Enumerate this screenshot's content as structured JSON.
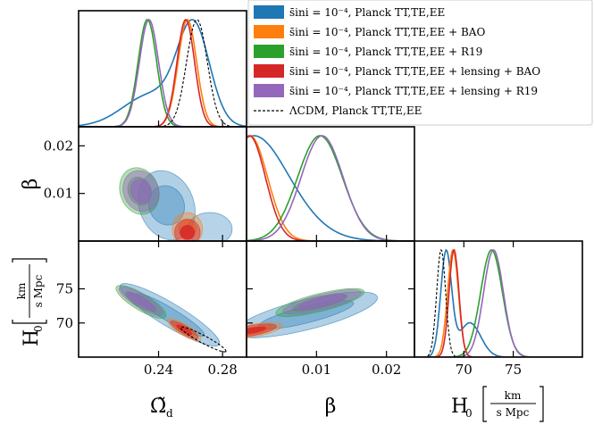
{
  "chart_data": {
    "type": "corner-triangle",
    "params": [
      {
        "id": "omega",
        "label": "Ω̃",
        "label_sub": "d",
        "range": [
          0.19,
          0.295
        ],
        "ticks": [
          0.24,
          0.28
        ],
        "tick_labels": [
          "0.24",
          "0.28"
        ]
      },
      {
        "id": "beta",
        "label": "β",
        "range": [
          0.0,
          0.024
        ],
        "ticks": [
          0.01,
          0.02
        ],
        "tick_labels": [
          "0.01",
          "0.02"
        ]
      },
      {
        "id": "h0",
        "label": "H",
        "label_sub": "0",
        "unit_num": "km",
        "unit_den": "s Mpc",
        "range": [
          65.0,
          82.0
        ],
        "ticks": [
          70,
          75
        ],
        "tick_labels": [
          "70",
          "75"
        ]
      }
    ],
    "y_tick_labels": {
      "beta": {
        "ticks": [
          0.01,
          0.02
        ],
        "labels": [
          "0.01",
          "0.02"
        ]
      },
      "h0": {
        "ticks": [
          70,
          75
        ],
        "labels": [
          "70",
          "75"
        ]
      }
    },
    "legend": {
      "position": "top-right"
    },
    "series": [
      {
        "id": "tt",
        "name": "s̄ini = 10⁻⁴, Planck TT,TE,EE",
        "color": "#1f77b4",
        "omega": {
          "mean": 0.262,
          "sd": 0.0165
        },
        "omega_peaks": [
          [
            0.262,
            0.01,
            1.0
          ],
          [
            0.236,
            0.018,
            0.34
          ]
        ],
        "beta": {
          "peaks": [
            [
              0.0,
              0.0045,
              1.0
            ],
            [
              0.004,
              0.005,
              0.5
            ]
          ]
        },
        "h0": {
          "peaks": [
            [
              68.2,
              0.55,
              1.0
            ],
            [
              70.6,
              1.1,
              0.33
            ]
          ]
        },
        "contour_omega_beta": {
          "center": [
            0.255,
            0.0085
          ],
          "rx": [
            0.048,
            0.024
          ],
          "angle": -50,
          "shape": "blob"
        },
        "contour_omega_h0": {
          "center": [
            0.245,
            71.0
          ],
          "rx": [
            0.046,
            4.2
          ],
          "angle": -38
        },
        "contour_beta_h0": {
          "center": [
            0.0088,
            71.0
          ],
          "rx": [
            0.0095,
            3.0
          ],
          "angle": 28
        }
      },
      {
        "id": "bao",
        "name": "s̄ini = 10⁻⁴, Planck TT,TE,EE + BAO",
        "color": "#ff7f0e",
        "omega": {
          "mean": 0.258,
          "sd": 0.0058
        },
        "beta": {
          "peaks": [
            [
              0.0005,
              0.0025,
              1.0
            ]
          ]
        },
        "h0": {
          "peaks": [
            [
              68.9,
              0.55,
              1.0
            ]
          ]
        }
      },
      {
        "id": "r19",
        "name": "s̄ini = 10⁻⁴, Planck TT,TE,EE + R19",
        "color": "#2ca02c",
        "omega": {
          "mean": 0.233,
          "sd": 0.0058
        },
        "beta": {
          "peaks": [
            [
              0.0105,
              0.0032,
              1.0
            ]
          ]
        },
        "h0": {
          "peaks": [
            [
              72.8,
              1.1,
              1.0
            ]
          ]
        }
      },
      {
        "id": "lens_bao",
        "name": "s̄ini = 10⁻⁴, Planck TT,TE,EE + lensing + BAO",
        "color": "#d62728",
        "omega": {
          "mean": 0.257,
          "sd": 0.0055
        },
        "beta": {
          "peaks": [
            [
              0.0004,
              0.0023,
              1.0
            ]
          ]
        },
        "h0": {
          "peaks": [
            [
              69.0,
              0.5,
              1.0
            ]
          ]
        }
      },
      {
        "id": "lens_r19",
        "name": "s̄ini = 10⁻⁴, Planck TT,TE,EE + lensing + R19",
        "color": "#9467bd",
        "omega": {
          "mean": 0.234,
          "sd": 0.006
        },
        "beta": {
          "peaks": [
            [
              0.0108,
              0.003,
              1.0
            ]
          ]
        },
        "h0": {
          "peaks": [
            [
              73.0,
              1.0,
              1.0
            ]
          ]
        }
      },
      {
        "id": "lcdm",
        "name": "ΛCDM, Planck TT,TE,EE",
        "color": "#000000",
        "dashed": true,
        "omega": {
          "mean": 0.264,
          "sd": 0.0065
        },
        "h0": {
          "peaks": [
            [
              67.7,
              0.45,
              1.0
            ]
          ]
        }
      }
    ]
  }
}
